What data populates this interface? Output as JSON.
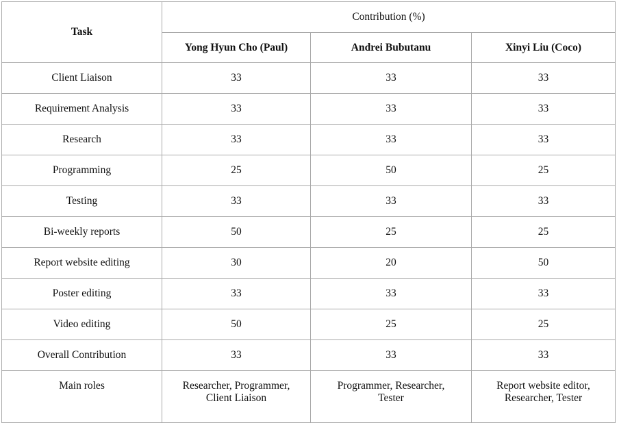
{
  "table": {
    "task_header": "Task",
    "group_header": "Contribution (%)",
    "members": [
      "Yong Hyun Cho (Paul)",
      "Andrei Bubutanu",
      "Xinyi Liu (Coco)"
    ],
    "rows": [
      {
        "task": "Client Liaison",
        "values": [
          "33",
          "33",
          "33"
        ]
      },
      {
        "task": "Requirement Analysis",
        "values": [
          "33",
          "33",
          "33"
        ]
      },
      {
        "task": "Research",
        "values": [
          "33",
          "33",
          "33"
        ]
      },
      {
        "task": "Programming",
        "values": [
          "25",
          "50",
          "25"
        ]
      },
      {
        "task": "Testing",
        "values": [
          "33",
          "33",
          "33"
        ]
      },
      {
        "task": "Bi-weekly reports",
        "values": [
          "50",
          "25",
          "25"
        ]
      },
      {
        "task": "Report website editing",
        "values": [
          "30",
          "20",
          "50"
        ]
      },
      {
        "task": "Poster editing",
        "values": [
          "33",
          "33",
          "33"
        ]
      },
      {
        "task": "Video editing",
        "values": [
          "50",
          "25",
          "25"
        ]
      },
      {
        "task": "Overall Contribution",
        "values": [
          "33",
          "33",
          "33"
        ]
      }
    ],
    "roles": {
      "label": "Main roles",
      "values": [
        [
          "Researcher, Programmer,",
          "Client Liaison"
        ],
        [
          "Programmer, Researcher,",
          "Tester"
        ],
        [
          "Report website editor,",
          "Researcher, Tester"
        ]
      ]
    }
  }
}
